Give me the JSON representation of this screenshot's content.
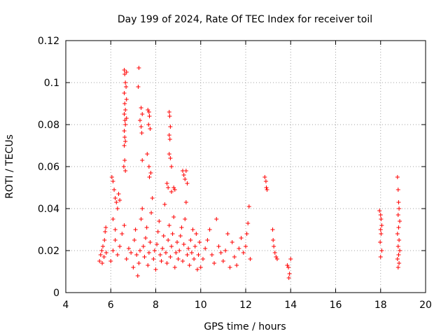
{
  "chart_data": {
    "type": "scatter",
    "title": "Day 199 of 2024, Rate Of TEC Index for receiver toil",
    "xlabel": "GPS time / hours",
    "ylabel": "ROTI / TECUs",
    "xlim": [
      4,
      20
    ],
    "ylim": [
      0,
      0.12
    ],
    "x_ticks": [
      "4",
      "6",
      "8",
      "10",
      "12",
      "14",
      "16",
      "18",
      "20"
    ],
    "y_ticks": [
      "0",
      "0.02",
      "0.04",
      "0.06",
      "0.08",
      "0.1",
      "0.12"
    ],
    "grid": true,
    "marker": "+",
    "color": "#ff0000",
    "series": [
      {
        "name": "ROTI",
        "points": [
          [
            5.5,
            0.015
          ],
          [
            5.55,
            0.018
          ],
          [
            5.6,
            0.02
          ],
          [
            5.62,
            0.014
          ],
          [
            5.65,
            0.022
          ],
          [
            5.7,
            0.017
          ],
          [
            5.72,
            0.025
          ],
          [
            5.75,
            0.029
          ],
          [
            5.78,
            0.031
          ],
          [
            5.8,
            0.019
          ],
          [
            6.05,
            0.055
          ],
          [
            6.1,
            0.053
          ],
          [
            6.15,
            0.049
          ],
          [
            6.2,
            0.045
          ],
          [
            6.25,
            0.043
          ],
          [
            6.1,
            0.035
          ],
          [
            6.2,
            0.03
          ],
          [
            6.3,
            0.04
          ],
          [
            6.35,
            0.047
          ],
          [
            6.4,
            0.044
          ],
          [
            6.6,
            0.106
          ],
          [
            6.62,
            0.104
          ],
          [
            6.65,
            0.1
          ],
          [
            6.6,
            0.095
          ],
          [
            6.62,
            0.09
          ],
          [
            6.65,
            0.087
          ],
          [
            6.6,
            0.085
          ],
          [
            6.63,
            0.082
          ],
          [
            6.65,
            0.08
          ],
          [
            6.6,
            0.077
          ],
          [
            6.62,
            0.074
          ],
          [
            6.65,
            0.072
          ],
          [
            6.6,
            0.07
          ],
          [
            6.62,
            0.063
          ],
          [
            6.58,
            0.06
          ],
          [
            6.65,
            0.058
          ],
          [
            6.7,
            0.105
          ],
          [
            6.68,
            0.098
          ],
          [
            6.7,
            0.092
          ],
          [
            6.7,
            0.083
          ],
          [
            7.25,
            0.107
          ],
          [
            7.22,
            0.098
          ],
          [
            7.35,
            0.088
          ],
          [
            7.4,
            0.085
          ],
          [
            7.3,
            0.082
          ],
          [
            7.35,
            0.079
          ],
          [
            7.38,
            0.076
          ],
          [
            7.4,
            0.063
          ],
          [
            7.65,
            0.087
          ],
          [
            7.7,
            0.086
          ],
          [
            7.72,
            0.084
          ],
          [
            7.68,
            0.08
          ],
          [
            7.75,
            0.078
          ],
          [
            7.62,
            0.066
          ],
          [
            7.7,
            0.06
          ],
          [
            7.78,
            0.057
          ],
          [
            7.72,
            0.055
          ],
          [
            8.6,
            0.086
          ],
          [
            8.62,
            0.084
          ],
          [
            8.65,
            0.079
          ],
          [
            8.6,
            0.075
          ],
          [
            8.63,
            0.073
          ],
          [
            8.6,
            0.066
          ],
          [
            8.65,
            0.064
          ],
          [
            8.7,
            0.06
          ],
          [
            8.5,
            0.052
          ],
          [
            8.55,
            0.05
          ],
          [
            8.7,
            0.048
          ],
          [
            8.8,
            0.05
          ],
          [
            8.85,
            0.049
          ],
          [
            9.2,
            0.058
          ],
          [
            9.25,
            0.056
          ],
          [
            9.3,
            0.054
          ],
          [
            9.35,
            0.058
          ],
          [
            9.4,
            0.052
          ],
          [
            6.0,
            0.015
          ],
          [
            6.1,
            0.02
          ],
          [
            6.2,
            0.025
          ],
          [
            6.3,
            0.018
          ],
          [
            6.4,
            0.022
          ],
          [
            6.5,
            0.028
          ],
          [
            6.6,
            0.032
          ],
          [
            6.7,
            0.016
          ],
          [
            6.8,
            0.021
          ],
          [
            6.9,
            0.019
          ],
          [
            7.0,
            0.012
          ],
          [
            7.05,
            0.025
          ],
          [
            7.1,
            0.03
          ],
          [
            7.15,
            0.018
          ],
          [
            7.2,
            0.008
          ],
          [
            7.25,
            0.014
          ],
          [
            7.3,
            0.02
          ],
          [
            7.35,
            0.035
          ],
          [
            7.4,
            0.04
          ],
          [
            7.45,
            0.022
          ],
          [
            7.5,
            0.017
          ],
          [
            7.55,
            0.026
          ],
          [
            7.6,
            0.031
          ],
          [
            7.65,
            0.013
          ],
          [
            7.7,
            0.019
          ],
          [
            7.75,
            0.024
          ],
          [
            7.8,
            0.038
          ],
          [
            7.85,
            0.045
          ],
          [
            7.9,
            0.016
          ],
          [
            7.95,
            0.02
          ],
          [
            8.0,
            0.011
          ],
          [
            8.05,
            0.023
          ],
          [
            8.1,
            0.029
          ],
          [
            8.15,
            0.034
          ],
          [
            8.2,
            0.018
          ],
          [
            8.25,
            0.015
          ],
          [
            8.3,
            0.021
          ],
          [
            8.35,
            0.027
          ],
          [
            8.4,
            0.042
          ],
          [
            8.45,
            0.019
          ],
          [
            8.5,
            0.014
          ],
          [
            8.55,
            0.025
          ],
          [
            8.6,
            0.032
          ],
          [
            8.65,
            0.017
          ],
          [
            8.7,
            0.022
          ],
          [
            8.75,
            0.028
          ],
          [
            8.8,
            0.036
          ],
          [
            8.85,
            0.012
          ],
          [
            8.9,
            0.019
          ],
          [
            8.95,
            0.024
          ],
          [
            9.0,
            0.016
          ],
          [
            9.05,
            0.02
          ],
          [
            9.1,
            0.027
          ],
          [
            9.15,
            0.031
          ],
          [
            9.2,
            0.015
          ],
          [
            9.25,
            0.023
          ],
          [
            9.3,
            0.035
          ],
          [
            9.35,
            0.043
          ],
          [
            9.4,
            0.018
          ],
          [
            9.45,
            0.021
          ],
          [
            9.5,
            0.013
          ],
          [
            9.55,
            0.025
          ],
          [
            9.6,
            0.019
          ],
          [
            9.65,
            0.03
          ],
          [
            9.7,
            0.016
          ],
          [
            9.75,
            0.022
          ],
          [
            9.8,
            0.028
          ],
          [
            9.85,
            0.011
          ],
          [
            9.9,
            0.018
          ],
          [
            9.95,
            0.024
          ],
          [
            10.0,
            0.012
          ],
          [
            10.1,
            0.016
          ],
          [
            10.2,
            0.021
          ],
          [
            10.3,
            0.025
          ],
          [
            10.4,
            0.03
          ],
          [
            10.5,
            0.018
          ],
          [
            10.6,
            0.014
          ],
          [
            10.7,
            0.035
          ],
          [
            10.8,
            0.022
          ],
          [
            10.9,
            0.019
          ],
          [
            11.0,
            0.015
          ],
          [
            11.1,
            0.02
          ],
          [
            11.2,
            0.028
          ],
          [
            11.3,
            0.012
          ],
          [
            11.4,
            0.024
          ],
          [
            11.5,
            0.017
          ],
          [
            11.6,
            0.013
          ],
          [
            11.7,
            0.021
          ],
          [
            11.8,
            0.026
          ],
          [
            11.9,
            0.019
          ],
          [
            12.0,
            0.022
          ],
          [
            12.05,
            0.028
          ],
          [
            12.1,
            0.033
          ],
          [
            12.15,
            0.041
          ],
          [
            12.2,
            0.016
          ],
          [
            12.85,
            0.055
          ],
          [
            12.9,
            0.053
          ],
          [
            12.92,
            0.05
          ],
          [
            12.95,
            0.049
          ],
          [
            13.2,
            0.03
          ],
          [
            13.22,
            0.025
          ],
          [
            13.25,
            0.022
          ],
          [
            13.3,
            0.019
          ],
          [
            13.35,
            0.017
          ],
          [
            13.4,
            0.016
          ],
          [
            13.85,
            0.013
          ],
          [
            13.9,
            0.012
          ],
          [
            13.95,
            0.009
          ],
          [
            13.92,
            0.007
          ],
          [
            14.0,
            0.016
          ],
          [
            17.95,
            0.039
          ],
          [
            18.0,
            0.037
          ],
          [
            18.02,
            0.035
          ],
          [
            18.05,
            0.032
          ],
          [
            18.0,
            0.03
          ],
          [
            18.02,
            0.028
          ],
          [
            17.98,
            0.024
          ],
          [
            18.05,
            0.02
          ],
          [
            18.0,
            0.017
          ],
          [
            18.75,
            0.055
          ],
          [
            18.78,
            0.049
          ],
          [
            18.8,
            0.043
          ],
          [
            18.82,
            0.04
          ],
          [
            18.78,
            0.037
          ],
          [
            18.85,
            0.034
          ],
          [
            18.8,
            0.031
          ],
          [
            18.75,
            0.028
          ],
          [
            18.82,
            0.025
          ],
          [
            18.78,
            0.022
          ],
          [
            18.85,
            0.02
          ],
          [
            18.8,
            0.018
          ],
          [
            18.75,
            0.016
          ],
          [
            18.82,
            0.014
          ],
          [
            18.78,
            0.012
          ]
        ]
      }
    ]
  }
}
